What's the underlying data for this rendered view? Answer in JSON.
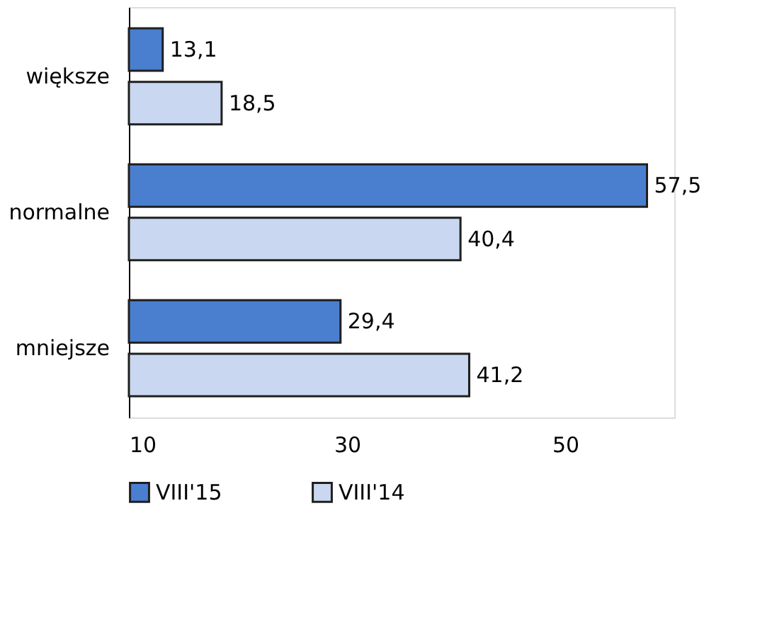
{
  "chart_data": {
    "type": "bar",
    "orientation": "horizontal",
    "categories": [
      "większe",
      "normalne",
      "mniejsze"
    ],
    "series": [
      {
        "name": "VIII'15",
        "color": "#4a7fd0",
        "values": [
          13.1,
          57.5,
          29.4
        ],
        "value_labels": [
          "13,1",
          "57,5",
          "29,4"
        ]
      },
      {
        "name": "VIII'14",
        "color": "#c9d8f0",
        "values": [
          18.5,
          40.4,
          41.2
        ],
        "value_labels": [
          "18,5",
          "40,4",
          "41,2"
        ]
      }
    ],
    "xlim": [
      10,
      60
    ],
    "xticks": [
      10,
      30,
      50
    ],
    "grid": false,
    "legend": "bottom"
  }
}
